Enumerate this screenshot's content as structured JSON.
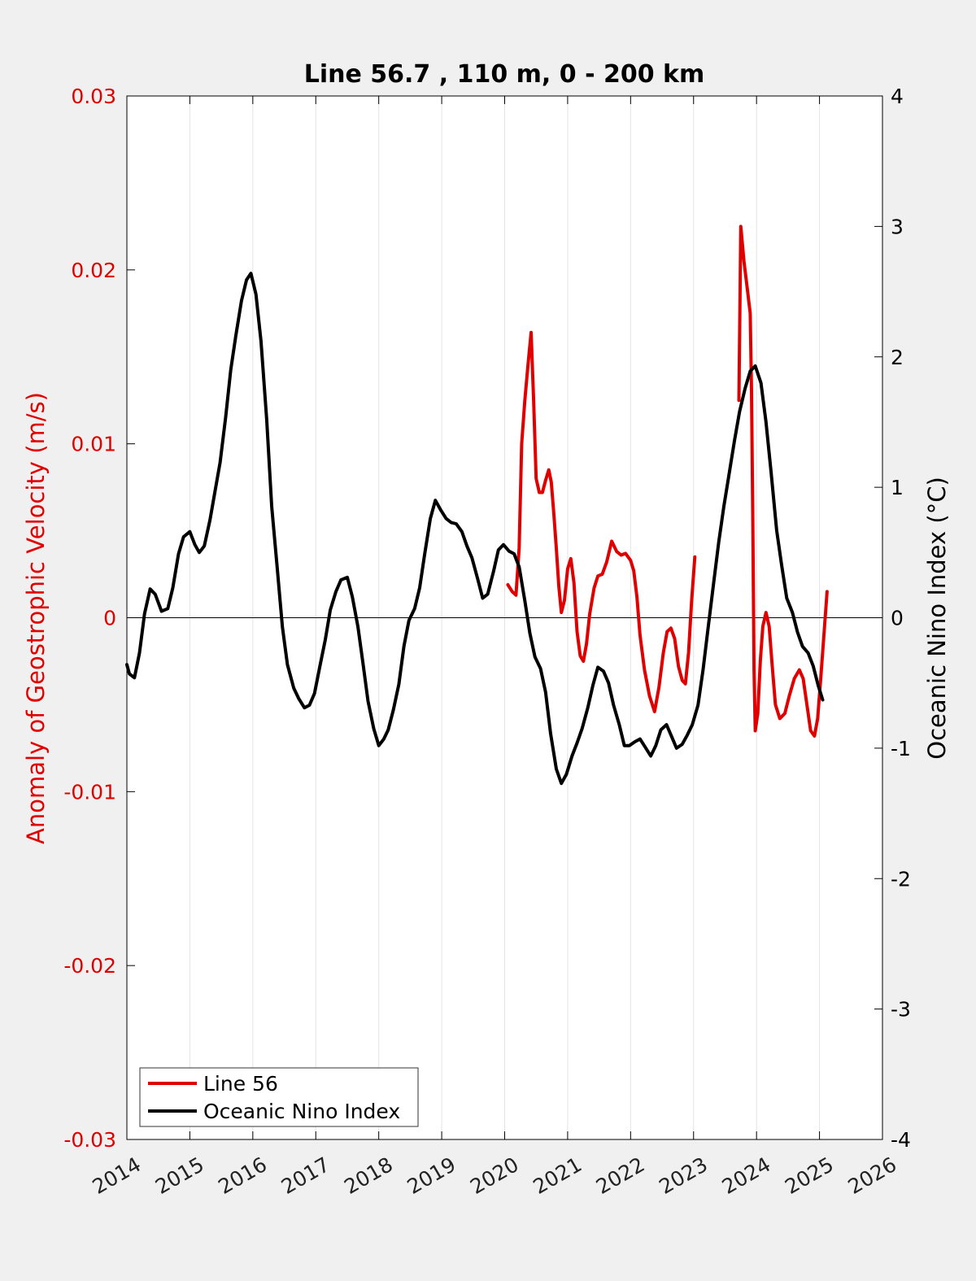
{
  "chart_data": {
    "type": "line",
    "title": "Line 56.7 , 110 m, 0 - 200 km",
    "ylabel_left": "Anomaly of Geostrophic Velocity (m/s)",
    "ylabel_right": "Oceanic Nino Index (°C)",
    "xlim": [
      2014,
      2026
    ],
    "ylim_left": [
      -0.03,
      0.03
    ],
    "ylim_right": [
      -4,
      4
    ],
    "x_ticks": [
      "2014",
      "2015",
      "2016",
      "2017",
      "2018",
      "2019",
      "2020",
      "2021",
      "2022",
      "2023",
      "2024",
      "2025",
      "2026"
    ],
    "y_left_ticks": [
      "-0.03",
      "-0.02",
      "-0.01",
      "0",
      "0.01",
      "0.02",
      "0.03"
    ],
    "y_right_ticks": [
      "-4",
      "-3",
      "-2",
      "-1",
      "0",
      "1",
      "2",
      "3",
      "4"
    ],
    "grid": "vertical",
    "zero_line": true,
    "legend_position": "bottom-left",
    "colors": {
      "line56": "#e00000",
      "oni": "#000000"
    },
    "series": [
      {
        "name": "Line 56",
        "axis": "left",
        "color": "#e00000",
        "segments": [
          [
            [
              2020.05,
              0.0019
            ],
            [
              2020.12,
              0.0015
            ],
            [
              2020.18,
              0.0013
            ],
            [
              2020.23,
              0.004
            ],
            [
              2020.27,
              0.01
            ],
            [
              2020.32,
              0.0125
            ],
            [
              2020.37,
              0.0145
            ],
            [
              2020.42,
              0.0164
            ],
            [
              2020.46,
              0.0125
            ],
            [
              2020.5,
              0.008
            ],
            [
              2020.55,
              0.0072
            ],
            [
              2020.6,
              0.0072
            ],
            [
              2020.65,
              0.0079
            ],
            [
              2020.7,
              0.0085
            ],
            [
              2020.74,
              0.0078
            ],
            [
              2020.78,
              0.006
            ],
            [
              2020.82,
              0.004
            ],
            [
              2020.86,
              0.0018
            ],
            [
              2020.9,
              0.0003
            ],
            [
              2020.95,
              0.001
            ],
            [
              2021.0,
              0.0028
            ],
            [
              2021.05,
              0.0034
            ],
            [
              2021.1,
              0.002
            ],
            [
              2021.15,
              -0.0008
            ],
            [
              2021.2,
              -0.0022
            ],
            [
              2021.25,
              -0.0025
            ],
            [
              2021.3,
              -0.0015
            ],
            [
              2021.35,
              0.0002
            ],
            [
              2021.42,
              0.0017
            ],
            [
              2021.48,
              0.0024
            ],
            [
              2021.55,
              0.0025
            ],
            [
              2021.62,
              0.0032
            ],
            [
              2021.7,
              0.0044
            ],
            [
              2021.78,
              0.0038
            ],
            [
              2021.85,
              0.0036
            ],
            [
              2021.92,
              0.0037
            ],
            [
              2022.0,
              0.0033
            ],
            [
              2022.05,
              0.0027
            ],
            [
              2022.1,
              0.0012
            ],
            [
              2022.15,
              -0.001
            ],
            [
              2022.22,
              -0.003
            ],
            [
              2022.3,
              -0.0045
            ],
            [
              2022.38,
              -0.0054
            ],
            [
              2022.45,
              -0.004
            ],
            [
              2022.52,
              -0.002
            ],
            [
              2022.58,
              -0.0008
            ],
            [
              2022.64,
              -0.0006
            ],
            [
              2022.7,
              -0.0012
            ],
            [
              2022.76,
              -0.0028
            ],
            [
              2022.82,
              -0.0036
            ],
            [
              2022.87,
              -0.0038
            ],
            [
              2022.92,
              -0.002
            ],
            [
              2022.97,
              0.001
            ],
            [
              2023.02,
              0.0035
            ]
          ],
          [
            [
              2023.72,
              0.0125
            ],
            [
              2023.73,
              0.016
            ],
            [
              2023.75,
              0.0225
            ],
            [
              2023.8,
              0.0205
            ],
            [
              2023.85,
              0.019
            ],
            [
              2023.9,
              0.0175
            ],
            [
              2023.92,
              0.013
            ],
            [
              2023.94,
              0.006
            ],
            [
              2023.96,
              -0.003
            ],
            [
              2023.98,
              -0.0065
            ],
            [
              2024.02,
              -0.0055
            ],
            [
              2024.06,
              -0.0025
            ],
            [
              2024.1,
              -0.0005
            ],
            [
              2024.15,
              0.0003
            ],
            [
              2024.2,
              -0.0005
            ],
            [
              2024.25,
              -0.0028
            ],
            [
              2024.3,
              -0.005
            ],
            [
              2024.37,
              -0.0058
            ],
            [
              2024.45,
              -0.0055
            ],
            [
              2024.52,
              -0.0045
            ],
            [
              2024.6,
              -0.0035
            ],
            [
              2024.68,
              -0.003
            ],
            [
              2024.74,
              -0.0035
            ],
            [
              2024.8,
              -0.005
            ],
            [
              2024.86,
              -0.0065
            ],
            [
              2024.92,
              -0.0068
            ],
            [
              2024.97,
              -0.0058
            ],
            [
              2025.02,
              -0.0035
            ],
            [
              2025.07,
              -0.001
            ],
            [
              2025.12,
              0.0015
            ]
          ]
        ]
      },
      {
        "name": "Oceanic Nino Index",
        "axis": "right",
        "color": "#000000",
        "segments": [
          [
            [
              2014.0,
              -0.36
            ],
            [
              2014.04,
              -0.43
            ],
            [
              2014.12,
              -0.46
            ],
            [
              2014.2,
              -0.27
            ],
            [
              2014.28,
              0.03
            ],
            [
              2014.37,
              0.22
            ],
            [
              2014.45,
              0.18
            ],
            [
              2014.55,
              0.05
            ],
            [
              2014.65,
              0.07
            ],
            [
              2014.73,
              0.23
            ],
            [
              2014.82,
              0.49
            ],
            [
              2014.9,
              0.62
            ],
            [
              2015.0,
              0.66
            ],
            [
              2015.08,
              0.56
            ],
            [
              2015.15,
              0.5
            ],
            [
              2015.23,
              0.55
            ],
            [
              2015.32,
              0.75
            ],
            [
              2015.4,
              0.97
            ],
            [
              2015.48,
              1.19
            ],
            [
              2015.57,
              1.54
            ],
            [
              2015.65,
              1.9
            ],
            [
              2015.73,
              2.16
            ],
            [
              2015.82,
              2.43
            ],
            [
              2015.9,
              2.59
            ],
            [
              2015.97,
              2.64
            ],
            [
              2016.05,
              2.48
            ],
            [
              2016.13,
              2.12
            ],
            [
              2016.22,
              1.52
            ],
            [
              2016.3,
              0.85
            ],
            [
              2016.38,
              0.42
            ],
            [
              2016.47,
              -0.07
            ],
            [
              2016.55,
              -0.36
            ],
            [
              2016.65,
              -0.54
            ],
            [
              2016.73,
              -0.62
            ],
            [
              2016.82,
              -0.69
            ],
            [
              2016.9,
              -0.67
            ],
            [
              2016.98,
              -0.58
            ],
            [
              2017.07,
              -0.36
            ],
            [
              2017.15,
              -0.17
            ],
            [
              2017.23,
              0.06
            ],
            [
              2017.32,
              0.2
            ],
            [
              2017.4,
              0.29
            ],
            [
              2017.5,
              0.31
            ],
            [
              2017.58,
              0.16
            ],
            [
              2017.67,
              -0.07
            ],
            [
              2017.75,
              -0.35
            ],
            [
              2017.83,
              -0.64
            ],
            [
              2017.92,
              -0.85
            ],
            [
              2018.0,
              -0.98
            ],
            [
              2018.08,
              -0.93
            ],
            [
              2018.15,
              -0.86
            ],
            [
              2018.23,
              -0.71
            ],
            [
              2018.32,
              -0.51
            ],
            [
              2018.4,
              -0.22
            ],
            [
              2018.48,
              -0.02
            ],
            [
              2018.57,
              0.07
            ],
            [
              2018.65,
              0.23
            ],
            [
              2018.73,
              0.49
            ],
            [
              2018.82,
              0.76
            ],
            [
              2018.9,
              0.9
            ],
            [
              2018.98,
              0.83
            ],
            [
              2019.07,
              0.76
            ],
            [
              2019.15,
              0.73
            ],
            [
              2019.23,
              0.72
            ],
            [
              2019.32,
              0.66
            ],
            [
              2019.4,
              0.55
            ],
            [
              2019.48,
              0.46
            ],
            [
              2019.57,
              0.3
            ],
            [
              2019.65,
              0.15
            ],
            [
              2019.73,
              0.18
            ],
            [
              2019.82,
              0.35
            ],
            [
              2019.9,
              0.52
            ],
            [
              2019.98,
              0.56
            ],
            [
              2020.07,
              0.51
            ],
            [
              2020.15,
              0.49
            ],
            [
              2020.23,
              0.39
            ],
            [
              2020.32,
              0.13
            ],
            [
              2020.4,
              -0.12
            ],
            [
              2020.48,
              -0.3
            ],
            [
              2020.57,
              -0.39
            ],
            [
              2020.65,
              -0.57
            ],
            [
              2020.73,
              -0.89
            ],
            [
              2020.82,
              -1.16
            ],
            [
              2020.9,
              -1.27
            ],
            [
              2020.98,
              -1.2
            ],
            [
              2021.07,
              -1.06
            ],
            [
              2021.15,
              -0.96
            ],
            [
              2021.23,
              -0.85
            ],
            [
              2021.32,
              -0.69
            ],
            [
              2021.4,
              -0.52
            ],
            [
              2021.48,
              -0.38
            ],
            [
              2021.57,
              -0.41
            ],
            [
              2021.65,
              -0.5
            ],
            [
              2021.73,
              -0.67
            ],
            [
              2021.82,
              -0.82
            ],
            [
              2021.9,
              -0.98
            ],
            [
              2021.98,
              -0.98
            ],
            [
              2022.07,
              -0.95
            ],
            [
              2022.15,
              -0.93
            ],
            [
              2022.23,
              -0.99
            ],
            [
              2022.32,
              -1.06
            ],
            [
              2022.4,
              -0.98
            ],
            [
              2022.48,
              -0.86
            ],
            [
              2022.57,
              -0.82
            ],
            [
              2022.65,
              -0.91
            ],
            [
              2022.73,
              -1.0
            ],
            [
              2022.82,
              -0.97
            ],
            [
              2022.9,
              -0.9
            ],
            [
              2022.98,
              -0.82
            ],
            [
              2023.07,
              -0.67
            ],
            [
              2023.15,
              -0.4
            ],
            [
              2023.23,
              -0.08
            ],
            [
              2023.32,
              0.27
            ],
            [
              2023.4,
              0.58
            ],
            [
              2023.48,
              0.85
            ],
            [
              2023.57,
              1.12
            ],
            [
              2023.65,
              1.36
            ],
            [
              2023.73,
              1.58
            ],
            [
              2023.82,
              1.76
            ],
            [
              2023.9,
              1.89
            ],
            [
              2023.98,
              1.93
            ],
            [
              2024.07,
              1.8
            ],
            [
              2024.15,
              1.5
            ],
            [
              2024.23,
              1.12
            ],
            [
              2024.32,
              0.67
            ],
            [
              2024.4,
              0.4
            ],
            [
              2024.48,
              0.15
            ],
            [
              2024.57,
              0.04
            ],
            [
              2024.65,
              -0.11
            ],
            [
              2024.73,
              -0.22
            ],
            [
              2024.82,
              -0.27
            ],
            [
              2024.9,
              -0.37
            ],
            [
              2024.98,
              -0.52
            ],
            [
              2025.05,
              -0.63
            ]
          ]
        ]
      }
    ]
  }
}
